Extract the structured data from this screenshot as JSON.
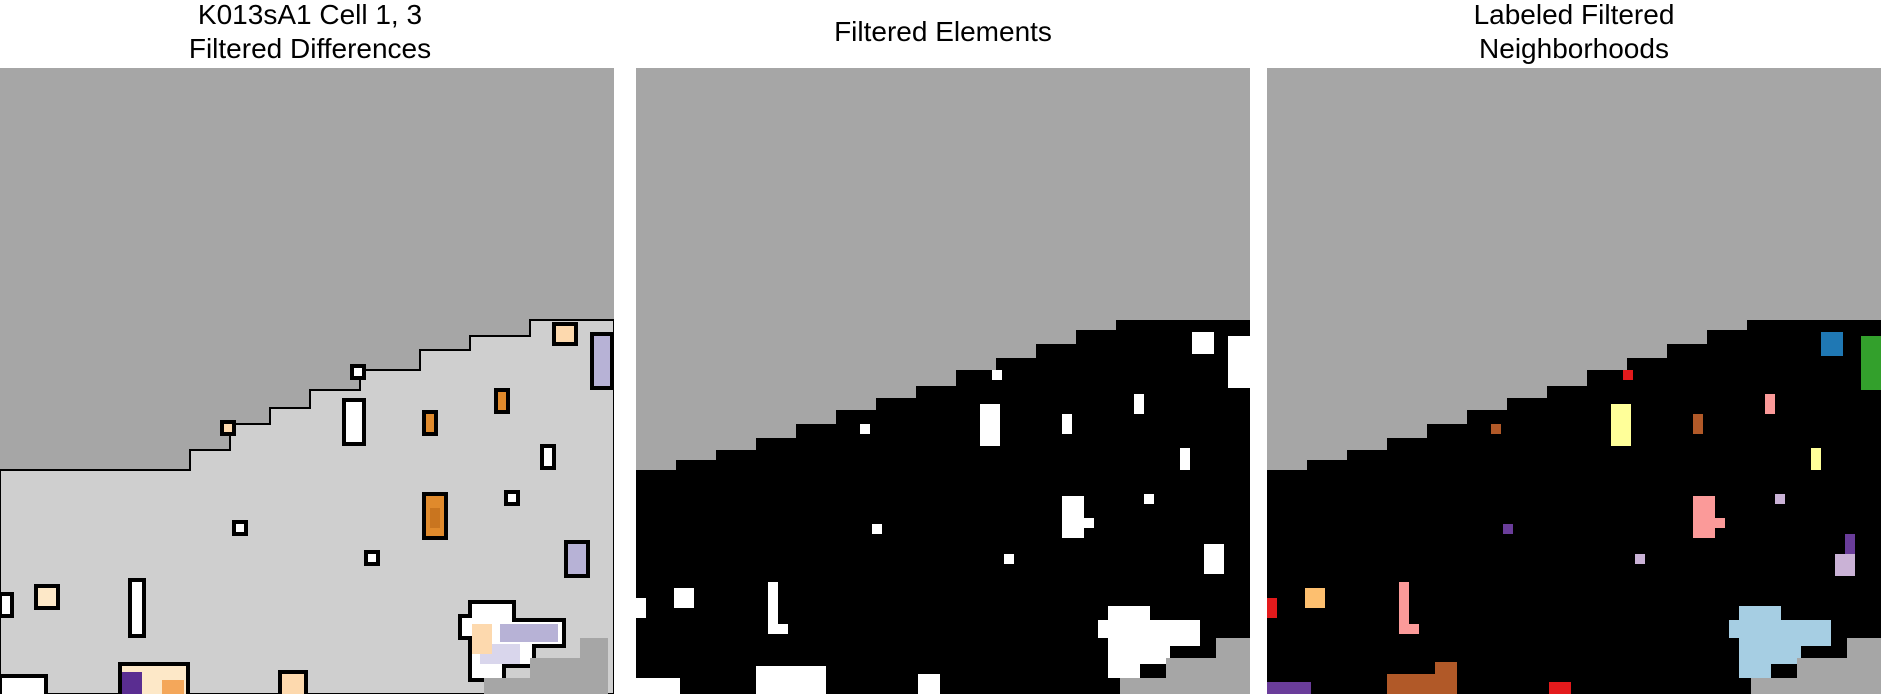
{
  "panels": [
    {
      "title_line1": "K013sA1 Cell 1, 3",
      "title_line2": "Filtered Differences"
    },
    {
      "title_line1": "Filtered Elements",
      "title_line2": ""
    },
    {
      "title_line1": "Labeled Filtered",
      "title_line2": "Neighborhoods"
    }
  ],
  "colors": {
    "background_gray": "#a6a6a6",
    "cell_light_gray": "#cfcfcf",
    "black": "#000000",
    "white": "#ffffff",
    "orange_dark": "#e08a2c",
    "orange_light": "#fdd9ae",
    "cream": "#fde8c8",
    "purple_light": "#b7b2d6",
    "purple_dark": "#5a2d91",
    "label_blue": "#1f78b4",
    "label_green": "#33a02c",
    "label_red": "#e31a1c",
    "label_pink": "#fb9a99",
    "label_yellow": "#ffff99",
    "label_brown": "#b15928",
    "label_lightblue": "#a6cee3",
    "label_lavender": "#cab2d6",
    "label_violet": "#6a3d9a",
    "label_peach": "#fdbf6f"
  }
}
